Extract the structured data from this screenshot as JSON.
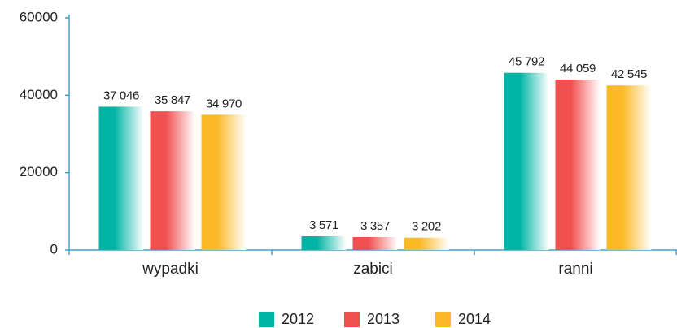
{
  "chart_data": {
    "type": "bar",
    "categories": [
      "wypadki",
      "zabici",
      "ranni"
    ],
    "series": [
      {
        "name": "2012",
        "color": "#00b5a5",
        "values": [
          37046,
          3571,
          45792
        ],
        "value_labels": [
          "37 046",
          "3 571",
          "45 792"
        ]
      },
      {
        "name": "2013",
        "color": "#f0504f",
        "values": [
          35847,
          3357,
          44059
        ],
        "value_labels": [
          "35 847",
          "3 357",
          "44 059"
        ]
      },
      {
        "name": "2014",
        "color": "#fbb927",
        "values": [
          34970,
          3202,
          42545
        ],
        "value_labels": [
          "34 970",
          "3 202",
          "42 545"
        ]
      }
    ],
    "ylim": [
      0,
      60000
    ],
    "yticks": [
      0,
      20000,
      40000,
      60000
    ],
    "grid": false,
    "legend": "bottom"
  }
}
